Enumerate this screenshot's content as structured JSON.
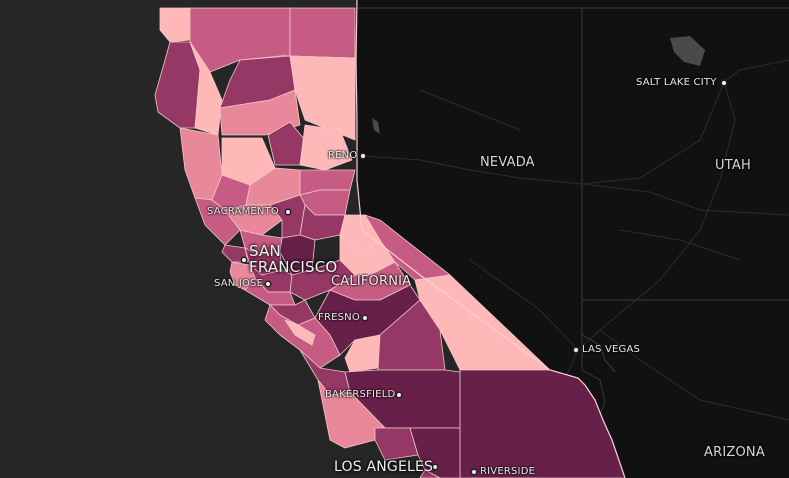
{
  "states": {
    "nevada": "NEVADA",
    "utah": "UTAH",
    "california": "CALIFORNIA",
    "arizona": "ARIZONA"
  },
  "cities": {
    "salt_lake_city": "SALT LAKE CITY",
    "reno": "RENO",
    "sacramento": "SACRAMENTO",
    "san_francisco_line1": "SAN",
    "san_francisco_line2": "FRANCISCO",
    "san_jose": "SAN JOSE",
    "fresno": "FRESNO",
    "las_vegas": "LAS VEGAS",
    "bakersfield": "BAKERSFIELD",
    "los_angeles": "LOS ANGELES",
    "riverside": "RIVERSIDE"
  },
  "colors": {
    "ocean": "#262626",
    "land": "#111111",
    "choropleth_lightest": "#ffb8b8",
    "choropleth_light": "#e8889a",
    "choropleth_mid": "#c65c84",
    "choropleth_dark": "#963866",
    "choropleth_darkest": "#66204a"
  }
}
